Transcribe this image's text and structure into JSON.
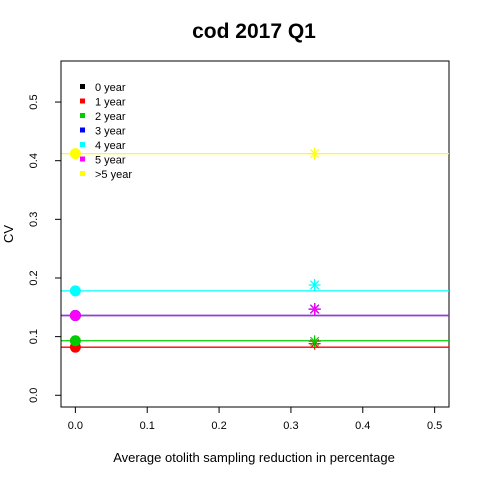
{
  "chart_data": {
    "type": "scatter",
    "title": "cod 2017 Q1",
    "xlabel": "Average otolith sampling reduction in percentage",
    "ylabel": "CV",
    "xlim": [
      -0.02,
      0.52
    ],
    "ylim": [
      -0.02,
      0.57
    ],
    "xticks": [
      "0.0",
      "0.1",
      "0.2",
      "0.3",
      "0.4",
      "0.5"
    ],
    "yticks": [
      "0.0",
      "0.1",
      "0.2",
      "0.3",
      "0.4",
      "0.5"
    ],
    "grid": false,
    "legend_position": "top-left",
    "series": [
      {
        "name": "0 year",
        "color": "#000000",
        "baseline": 0.136,
        "points": [
          {
            "x": 0.0,
            "y": 0.136
          },
          {
            "x": 0.333,
            "y": 0.147
          }
        ]
      },
      {
        "name": "1 year",
        "color": "#ff0000",
        "baseline": 0.082,
        "points": [
          {
            "x": 0.0,
            "y": 0.082
          },
          {
            "x": 0.333,
            "y": 0.088
          }
        ]
      },
      {
        "name": "2 year",
        "color": "#00cd00",
        "baseline": 0.093,
        "points": [
          {
            "x": 0.0,
            "y": 0.093
          },
          {
            "x": 0.333,
            "y": 0.092
          }
        ]
      },
      {
        "name": "3 year",
        "color": "#0000ff",
        "baseline": 0.136,
        "points": [
          {
            "x": 0.0,
            "y": 0.136
          },
          {
            "x": 0.333,
            "y": 0.147
          }
        ]
      },
      {
        "name": "4 year",
        "color": "#00ffff",
        "baseline": 0.178,
        "points": [
          {
            "x": 0.0,
            "y": 0.178
          },
          {
            "x": 0.333,
            "y": 0.188
          }
        ]
      },
      {
        "name": "5 year",
        "color": "#ff00ff",
        "baseline": 0.136,
        "points": [
          {
            "x": 0.0,
            "y": 0.136
          },
          {
            "x": 0.333,
            "y": 0.147
          }
        ]
      },
      {
        "name": ">5 year",
        "color": "#ffff00",
        "baseline": 0.412,
        "points": [
          {
            "x": 0.0,
            "y": 0.412
          },
          {
            "x": 0.333,
            "y": 0.412
          }
        ]
      }
    ]
  }
}
